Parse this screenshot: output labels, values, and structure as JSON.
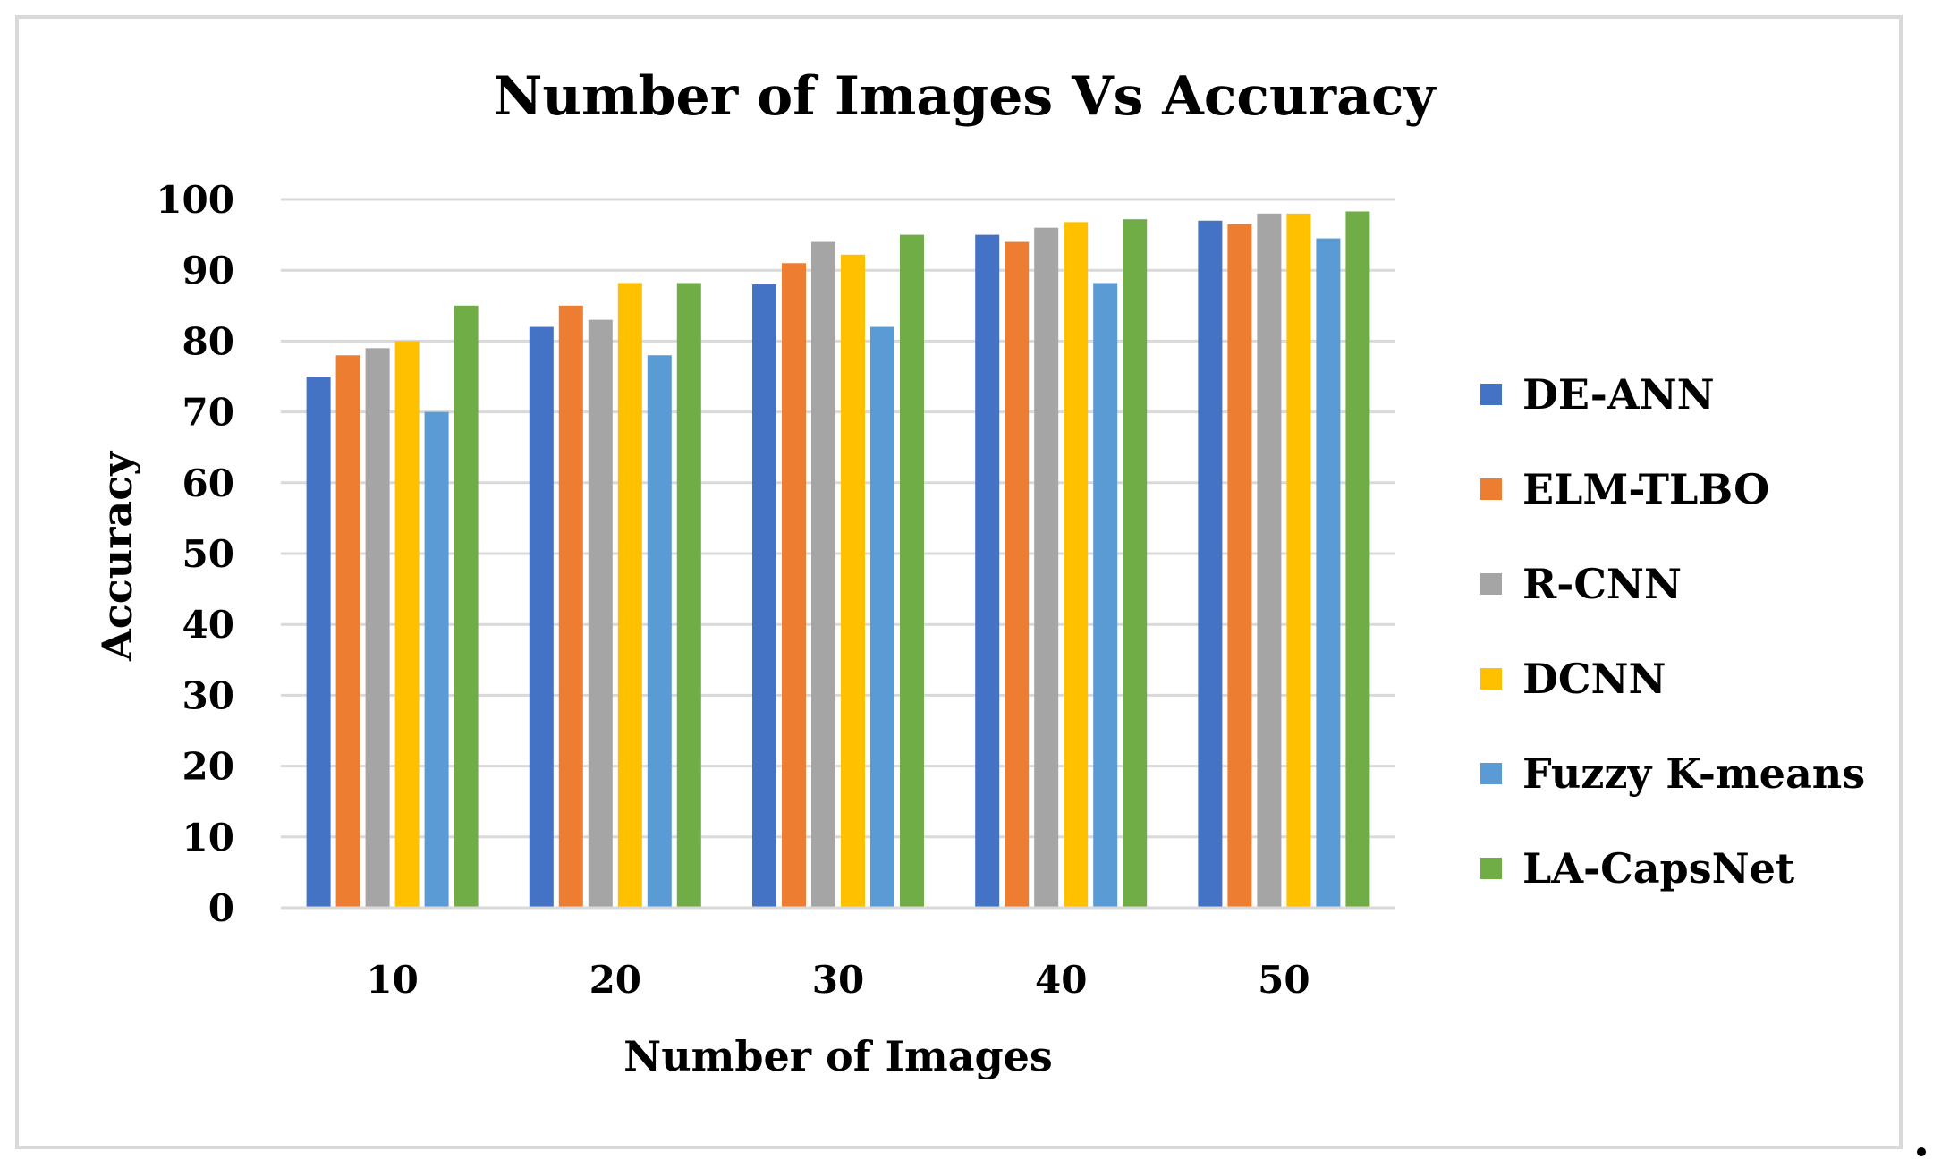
{
  "chart_data": {
    "type": "bar",
    "title": "Number of Images Vs Accuracy",
    "xlabel": "Number of Images",
    "ylabel": "Accuracy",
    "categories": [
      "10",
      "20",
      "30",
      "40",
      "50"
    ],
    "ylim": [
      0,
      100
    ],
    "yticks": [
      "0",
      "10",
      "20",
      "30",
      "40",
      "50",
      "60",
      "70",
      "80",
      "90",
      "100"
    ],
    "grid": "horizontal",
    "legend_position": "right",
    "series": [
      {
        "name": "DE-ANN",
        "color": "#4472c4",
        "values": [
          75,
          82,
          88,
          95,
          97
        ]
      },
      {
        "name": "ELM-TLBO",
        "color": "#ed7d31",
        "values": [
          78,
          85,
          91,
          94,
          96.5
        ]
      },
      {
        "name": "R-CNN",
        "color": "#a5a5a5",
        "values": [
          79,
          83,
          94,
          96,
          98
        ]
      },
      {
        "name": "DCNN",
        "color": "#ffc000",
        "values": [
          80,
          88.2,
          92.2,
          96.8,
          98
        ]
      },
      {
        "name": "Fuzzy K-means",
        "color": "#5b9bd5",
        "values": [
          70,
          78,
          82,
          88.2,
          94.5
        ]
      },
      {
        "name": "LA-CapsNet",
        "color": "#70ad47",
        "values": [
          85,
          88.2,
          95,
          97.2,
          98.3
        ]
      }
    ]
  }
}
